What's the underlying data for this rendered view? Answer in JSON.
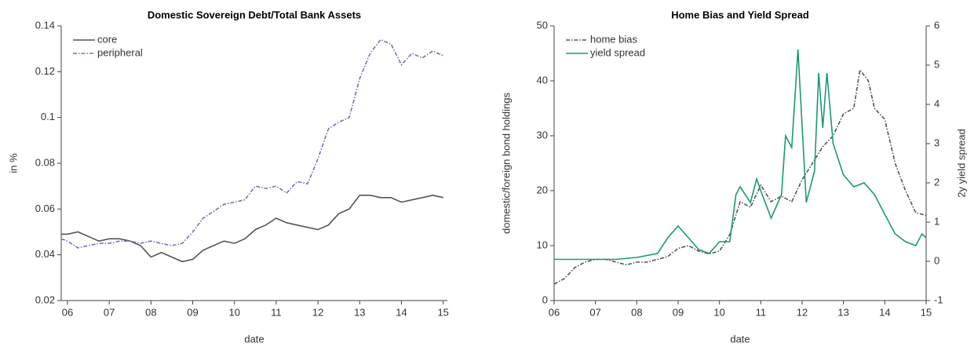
{
  "chart_data": [
    {
      "type": "line",
      "title": "Domestic Sovereign Debt/Total Bank Assets",
      "xlabel": "date",
      "ylabel": "in %",
      "xlim": [
        5.85,
        15.1
      ],
      "xticks": [
        {
          "value": 6,
          "label": "06"
        },
        {
          "value": 7,
          "label": "07"
        },
        {
          "value": 8,
          "label": "08"
        },
        {
          "value": 9,
          "label": "09"
        },
        {
          "value": 10,
          "label": "10"
        },
        {
          "value": 11,
          "label": "11"
        },
        {
          "value": 12,
          "label": "12"
        },
        {
          "value": 13,
          "label": "13"
        },
        {
          "value": 14,
          "label": "14"
        },
        {
          "value": 15,
          "label": "15"
        }
      ],
      "ylim": [
        0.02,
        0.14
      ],
      "yticks": [
        0.02,
        0.04,
        0.06,
        0.08,
        0.1,
        0.12,
        0.14
      ],
      "legend": "upper left",
      "series": [
        {
          "name": "core",
          "color": "#555555",
          "linestyle": "solid",
          "x": [
            5.85,
            6.0,
            6.25,
            6.5,
            6.75,
            7.0,
            7.25,
            7.5,
            7.75,
            8.0,
            8.25,
            8.5,
            8.75,
            9.0,
            9.25,
            9.5,
            9.75,
            10.0,
            10.25,
            10.5,
            10.75,
            11.0,
            11.25,
            11.5,
            11.75,
            12.0,
            12.25,
            12.5,
            12.75,
            13.0,
            13.25,
            13.5,
            13.75,
            14.0,
            14.25,
            14.5,
            14.75,
            15.0
          ],
          "values": [
            0.049,
            0.049,
            0.05,
            0.048,
            0.046,
            0.047,
            0.047,
            0.046,
            0.044,
            0.039,
            0.041,
            0.039,
            0.037,
            0.038,
            0.042,
            0.044,
            0.046,
            0.045,
            0.047,
            0.051,
            0.053,
            0.056,
            0.054,
            0.053,
            0.052,
            0.051,
            0.053,
            0.058,
            0.06,
            0.066,
            0.066,
            0.065,
            0.065,
            0.063,
            0.064,
            0.065,
            0.066,
            0.065
          ]
        },
        {
          "name": "peripheral",
          "color": "#7b6fb5",
          "linestyle": "dashdot",
          "x": [
            5.85,
            6.0,
            6.25,
            6.5,
            6.75,
            7.0,
            7.25,
            7.5,
            7.75,
            8.0,
            8.25,
            8.5,
            8.75,
            9.0,
            9.25,
            9.5,
            9.75,
            10.0,
            10.25,
            10.5,
            10.75,
            11.0,
            11.25,
            11.5,
            11.75,
            12.0,
            12.25,
            12.5,
            12.75,
            13.0,
            13.25,
            13.5,
            13.75,
            14.0,
            14.25,
            14.5,
            14.75,
            15.0
          ],
          "values": [
            0.047,
            0.046,
            0.043,
            0.044,
            0.045,
            0.045,
            0.046,
            0.046,
            0.045,
            0.046,
            0.045,
            0.044,
            0.045,
            0.05,
            0.056,
            0.059,
            0.062,
            0.063,
            0.064,
            0.07,
            0.069,
            0.07,
            0.067,
            0.072,
            0.071,
            0.082,
            0.095,
            0.098,
            0.1,
            0.117,
            0.128,
            0.134,
            0.132,
            0.123,
            0.128,
            0.126,
            0.129,
            0.127
          ]
        }
      ]
    },
    {
      "type": "line",
      "title": "Home Bias and Yield Spread",
      "xlabel": "date",
      "ylabel": "domestic/foreign bond holdings",
      "y2label": "2y yield spread",
      "xlim": [
        6,
        15
      ],
      "xticks": [
        {
          "value": 6,
          "label": "06"
        },
        {
          "value": 7,
          "label": "07"
        },
        {
          "value": 8,
          "label": "08"
        },
        {
          "value": 9,
          "label": "09"
        },
        {
          "value": 10,
          "label": "10"
        },
        {
          "value": 11,
          "label": "11"
        },
        {
          "value": 12,
          "label": "12"
        },
        {
          "value": 13,
          "label": "13"
        },
        {
          "value": 14,
          "label": "14"
        },
        {
          "value": 15,
          "label": "15"
        }
      ],
      "ylim": [
        0,
        50
      ],
      "yticks": [
        0,
        10,
        20,
        30,
        40,
        50
      ],
      "y2lim": [
        -1,
        6
      ],
      "y2ticks": [
        -1,
        0,
        1,
        2,
        3,
        4,
        5,
        6
      ],
      "legend": "upper left",
      "series": [
        {
          "name": "home bias",
          "color": "#555555",
          "linestyle": "dashdot",
          "x": [
            6.0,
            6.25,
            6.5,
            6.75,
            7.0,
            7.25,
            7.5,
            7.75,
            8.0,
            8.25,
            8.5,
            8.75,
            9.0,
            9.25,
            9.5,
            9.75,
            10.0,
            10.25,
            10.5,
            10.75,
            11.0,
            11.25,
            11.5,
            11.75,
            12.0,
            12.25,
            12.5,
            12.75,
            13.0,
            13.25,
            13.4,
            13.6,
            13.75,
            14.0,
            14.25,
            14.5,
            14.75,
            15.0
          ],
          "values": [
            3,
            4,
            6,
            7,
            7.5,
            7.5,
            7,
            6.5,
            7,
            7,
            7.5,
            8,
            9.5,
            10,
            9,
            8.5,
            9,
            12,
            18,
            17,
            21,
            18,
            19,
            18,
            22,
            25,
            28,
            30,
            34,
            35,
            42,
            40,
            35,
            33,
            25,
            20,
            16,
            15.5
          ]
        },
        {
          "name": "yield spread",
          "color": "#1a9a74",
          "linestyle": "solid",
          "axis": "y2",
          "x": [
            6.0,
            6.5,
            7.0,
            7.5,
            8.0,
            8.5,
            8.75,
            9.0,
            9.25,
            9.5,
            9.75,
            10.0,
            10.25,
            10.4,
            10.5,
            10.75,
            10.9,
            11.0,
            11.25,
            11.5,
            11.6,
            11.75,
            11.9,
            12.1,
            12.3,
            12.4,
            12.5,
            12.6,
            12.75,
            13.0,
            13.25,
            13.5,
            13.75,
            14.0,
            14.25,
            14.5,
            14.75,
            14.9,
            15.0
          ],
          "values": [
            0.05,
            0.05,
            0.05,
            0.05,
            0.1,
            0.2,
            0.6,
            0.9,
            0.6,
            0.3,
            0.2,
            0.5,
            0.5,
            1.7,
            1.9,
            1.5,
            2.1,
            1.8,
            1.1,
            1.7,
            3.2,
            2.9,
            5.4,
            1.5,
            2.3,
            4.8,
            3.4,
            4.8,
            3.0,
            2.2,
            1.9,
            2.0,
            1.7,
            1.2,
            0.7,
            0.5,
            0.4,
            0.7,
            0.6
          ]
        }
      ]
    }
  ]
}
